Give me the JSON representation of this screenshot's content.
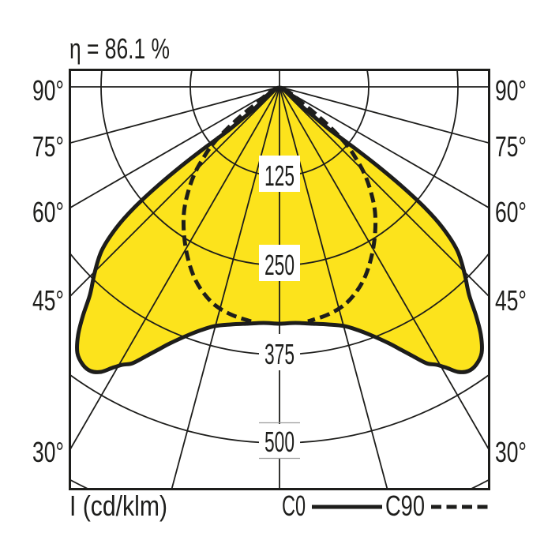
{
  "header": {
    "efficiency_label": "η = 86.1 %"
  },
  "polar_chart": {
    "unit_label": "I (cd/klm)",
    "angle_labels_left": [
      "90°",
      "75°",
      "60°",
      "45°",
      "30°"
    ],
    "angle_labels_right": [
      "90°",
      "75°",
      "60°",
      "45°",
      "30°"
    ],
    "ring_labels": [
      "125",
      "250",
      "375",
      "500"
    ],
    "legend": {
      "c0_label": "C0",
      "c90_label": "C90"
    },
    "colors": {
      "fill_yellow": "#FCE31C",
      "line_black": "#1D1D1B",
      "tick_gray": "#9C9C9C",
      "background": "#FFFFFF"
    }
  },
  "chart_data": {
    "type": "polar_intensity_distribution",
    "title": "η = 86.1 %",
    "efficiency_percent": 86.1,
    "unit": "cd/klm",
    "unit_axis_label": "I (cd/klm)",
    "radial_ticks_cd_per_klm": [
      125,
      250,
      375,
      500
    ],
    "angle_tick_labels_deg": [
      90,
      75,
      60,
      45,
      30
    ],
    "angle_grid_step_deg": 15,
    "legend_position": "bottom",
    "grid": true,
    "series": [
      {
        "name": "C0",
        "style": "solid",
        "filled": true,
        "fill_color": "#FCE31C",
        "gamma_deg": [
          0,
          15,
          30,
          35,
          40,
          45,
          50,
          55,
          60,
          75,
          90
        ],
        "intensity_cd_per_klm": [
          335,
          345,
          440,
          470,
          445,
          380,
          300,
          60,
          25,
          12,
          8
        ]
      },
      {
        "name": "C90",
        "style": "dashed",
        "filled": false,
        "gamma_deg": [
          0,
          15,
          30,
          35,
          40,
          45,
          50,
          55,
          60,
          75,
          90
        ],
        "intensity_cd_per_klm": [
          333,
          310,
          250,
          225,
          207,
          182,
          130,
          60,
          28,
          14,
          10
        ]
      }
    ]
  }
}
